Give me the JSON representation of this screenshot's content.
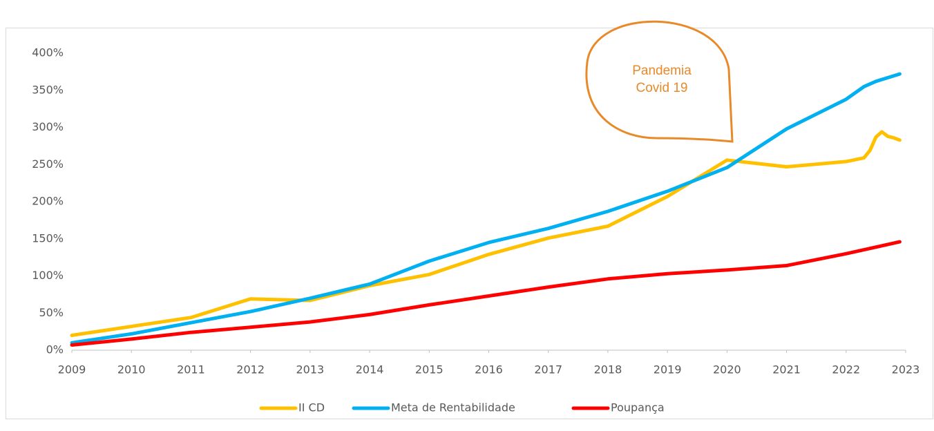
{
  "chart_data": {
    "type": "line",
    "annotation": [
      "Pandemia",
      "Covid 19"
    ],
    "xlim": [
      2009,
      2023
    ],
    "xticks": [
      2009,
      2010,
      2011,
      2012,
      2013,
      2014,
      2015,
      2016,
      2017,
      2018,
      2019,
      2020,
      2021,
      2022,
      2023
    ],
    "ylim": [
      0,
      400
    ],
    "yticks": [
      {
        "value": 0,
        "label": "0%"
      },
      {
        "value": 50,
        "label": "50%"
      },
      {
        "value": 100,
        "label": "100%"
      },
      {
        "value": 150,
        "label": "150%"
      },
      {
        "value": 200,
        "label": "200%"
      },
      {
        "value": 250,
        "label": "250%"
      },
      {
        "value": 300,
        "label": "300%"
      },
      {
        "value": 350,
        "label": "350%"
      },
      {
        "value": 400,
        "label": "400%"
      }
    ],
    "grid": false,
    "legend": "bottom",
    "series": [
      {
        "name": "II CD",
        "color": "#ffc000",
        "x": [
          2009,
          2011,
          2012,
          2013,
          2014,
          2015,
          2016,
          2017,
          2018,
          2019,
          2020,
          2021,
          2022,
          2022.3,
          2022.4,
          2022.5,
          2022.6,
          2022.7,
          2022.8,
          2022.9
        ],
        "values": [
          20,
          44,
          69,
          67,
          87,
          102,
          129,
          151,
          167,
          207,
          256,
          247,
          254,
          259,
          269,
          287,
          294,
          288,
          286,
          283
        ]
      },
      {
        "name": "Meta de Rentabilidade",
        "color": "#00b0f0",
        "x": [
          2009,
          2010,
          2011,
          2012,
          2013,
          2014,
          2015,
          2016,
          2017,
          2018,
          2019,
          2020,
          2021,
          2022,
          2022.3,
          2022.5,
          2022.9
        ],
        "values": [
          10,
          22,
          37,
          52,
          70,
          89,
          120,
          145,
          164,
          187,
          214,
          246,
          298,
          338,
          355,
          362,
          372
        ]
      },
      {
        "name": "Poupança",
        "color": "#ff0000",
        "x": [
          2009,
          2010,
          2011,
          2012,
          2013,
          2014,
          2015,
          2016,
          2017,
          2018,
          2019,
          2020,
          2021,
          2022,
          2022.9
        ],
        "values": [
          7,
          15,
          24,
          31,
          38,
          48,
          61,
          73,
          85,
          96,
          103,
          108,
          114,
          130,
          146
        ]
      }
    ]
  }
}
